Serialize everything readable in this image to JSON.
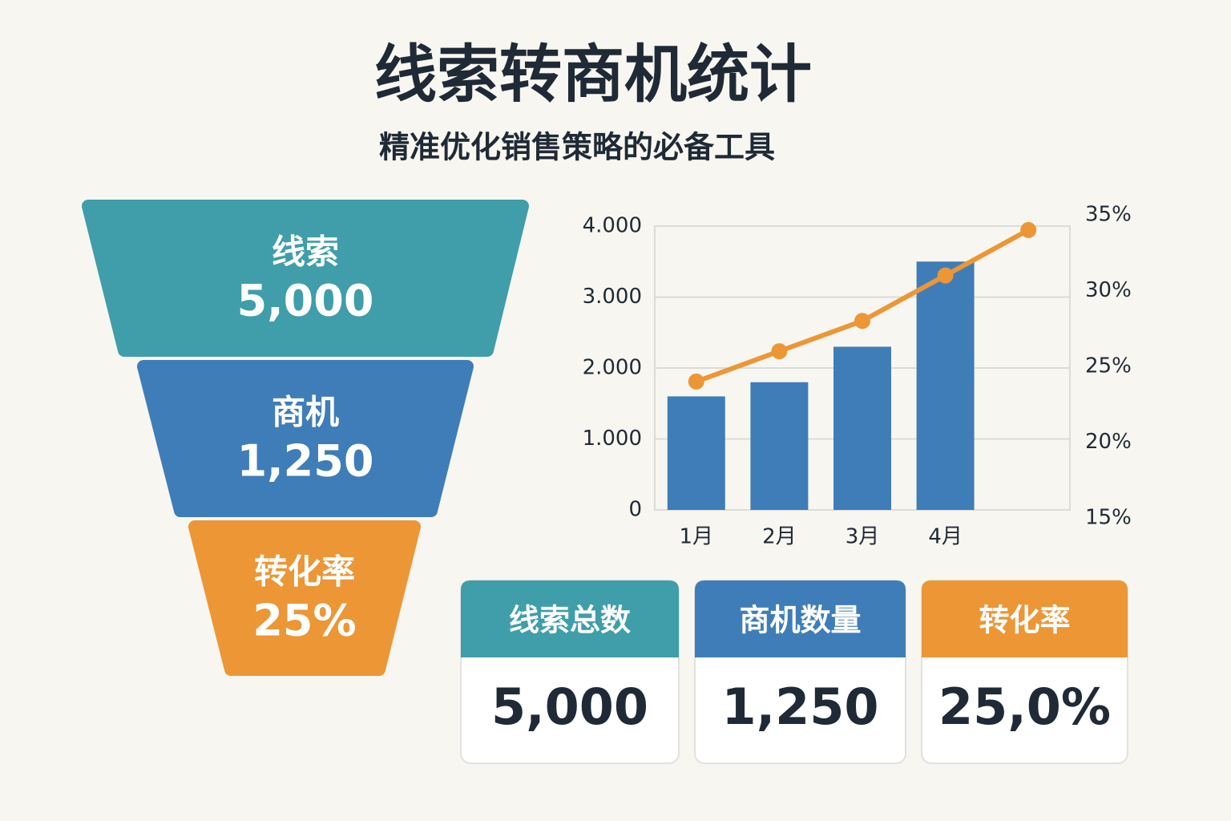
{
  "header": {
    "title": "线索转商机统计",
    "subtitle": "精准优化销售策略的必备工具"
  },
  "funnel": {
    "stages": [
      {
        "label": "线索",
        "value": "5,000",
        "color": "#3f9ea9"
      },
      {
        "label": "商机",
        "value": "1,250",
        "color": "#3f7db8"
      },
      {
        "label": "转化率",
        "value": "25%",
        "color": "#ec9636"
      }
    ]
  },
  "chart_data": {
    "type": "bar",
    "categories": [
      "1月",
      "2月",
      "3月",
      "4月",
      null
    ],
    "series": [
      {
        "type": "bar",
        "color": "#3f7db8",
        "values": [
          1600,
          1800,
          2300,
          3500,
          null
        ]
      },
      {
        "type": "line",
        "color": "#ec9636",
        "axis": "y2",
        "values": [
          24,
          26,
          28,
          31,
          34
        ]
      }
    ],
    "ylim": [
      0,
      4000
    ],
    "yticks": [
      0,
      {
        "value": 1000,
        "label": "1.000"
      },
      {
        "value": 2000,
        "label": "2.000"
      },
      {
        "value": 3000,
        "label": "3.000"
      },
      {
        "value": 4000,
        "label": "4.000"
      }
    ],
    "y2lim": [
      15,
      35
    ],
    "y2ticks": [
      {
        "value": 15,
        "label": "15%"
      },
      {
        "value": 20,
        "label": "20%"
      },
      {
        "value": 25,
        "label": "25%"
      },
      {
        "value": 30,
        "label": "30%"
      },
      {
        "value": 35,
        "label": "35%"
      }
    ],
    "grid": true
  },
  "cards": [
    {
      "title": "线索总数",
      "value": "5,000",
      "color": "#3f9ea9"
    },
    {
      "title": "商机数量",
      "value": "1,250",
      "color": "#3f7db8"
    },
    {
      "title": "转化率",
      "value": "25,0%",
      "color": "#ec9636"
    }
  ]
}
